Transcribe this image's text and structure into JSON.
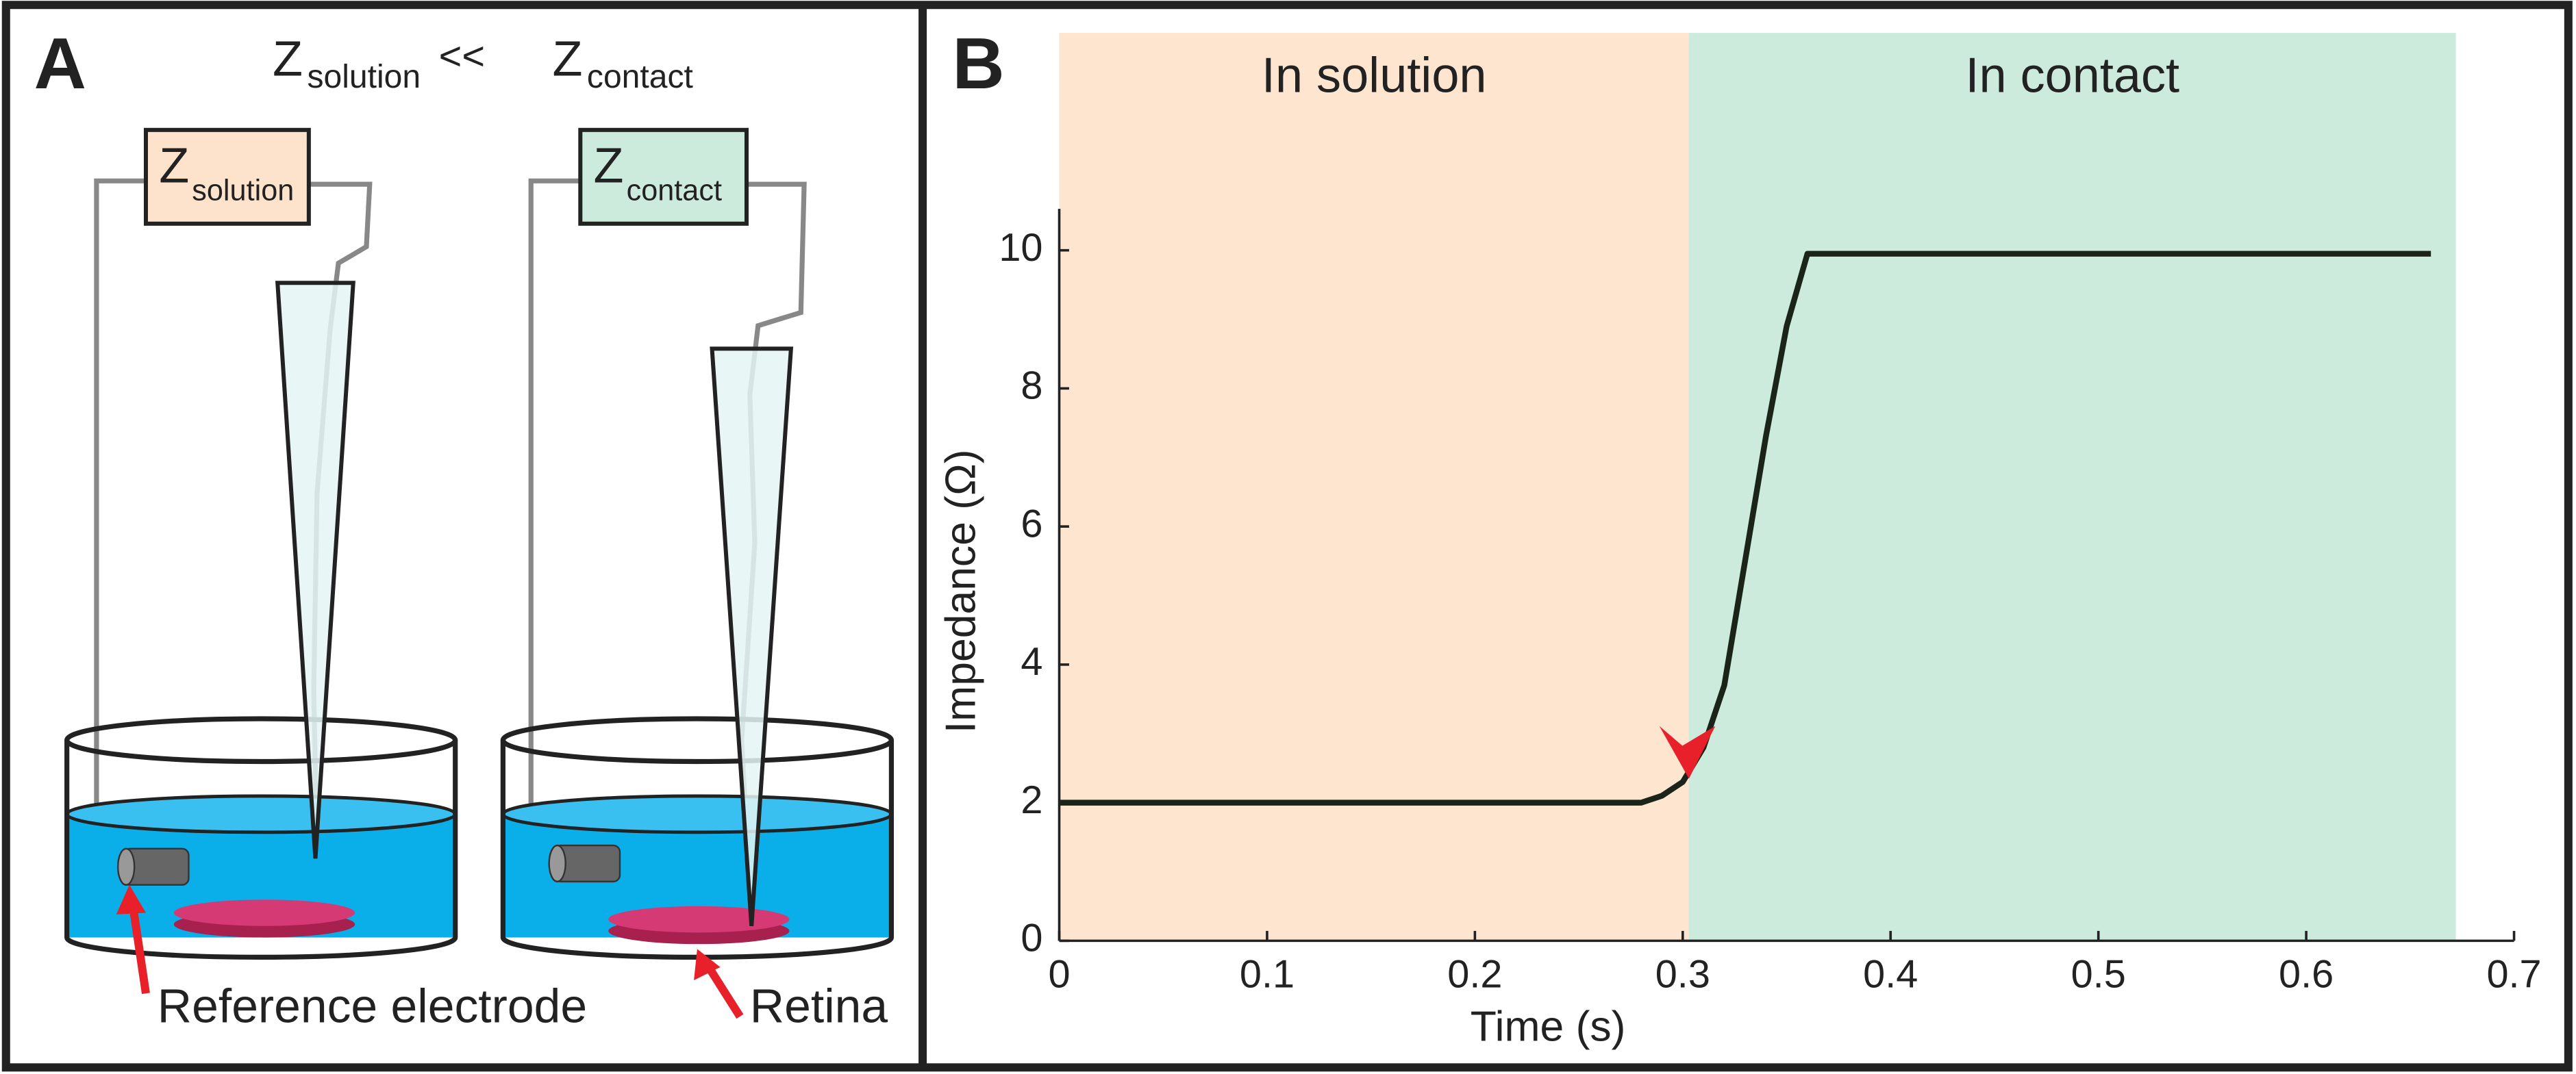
{
  "panel_a": {
    "label": "A",
    "relation": {
      "left_z": "Z",
      "left_sub": "solution",
      "op": "<<",
      "right_z": "Z",
      "right_sub": "contact"
    },
    "boxes": [
      {
        "z": "Z",
        "sub": "solution"
      },
      {
        "z": "Z",
        "sub": "contact"
      }
    ],
    "callouts": [
      "Reference electrode",
      "Retina"
    ]
  },
  "chart_data": {
    "type": "line",
    "panel_label": "B",
    "xlabel": "Time (s)",
    "ylabel": "Impedance (Ω)",
    "xlim": [
      0,
      0.7
    ],
    "xticks": [
      0,
      0.1,
      0.2,
      0.3,
      0.4,
      0.5,
      0.6,
      0.7
    ],
    "ylim": [
      0,
      10.6
    ],
    "yticks": [
      0,
      2,
      4,
      6,
      8,
      10
    ],
    "regions": [
      {
        "label": "In solution",
        "start": 0,
        "end": 0.303,
        "color": "#fde5d0"
      },
      {
        "label": "In contact",
        "start": 0.303,
        "end": 0.672,
        "color": "#cdebdc"
      }
    ],
    "series": [
      {
        "color": "#1a2418",
        "x": [
          0,
          0.28,
          0.29,
          0.3,
          0.31,
          0.32,
          0.33,
          0.34,
          0.35,
          0.36,
          0.66
        ],
        "values": [
          2,
          2,
          2.1,
          2.3,
          2.8,
          3.7,
          5.5,
          7.3,
          8.9,
          9.95,
          9.95
        ]
      }
    ],
    "marker": {
      "x": 0.303,
      "y": 2.3,
      "color": "#e8202a"
    }
  }
}
